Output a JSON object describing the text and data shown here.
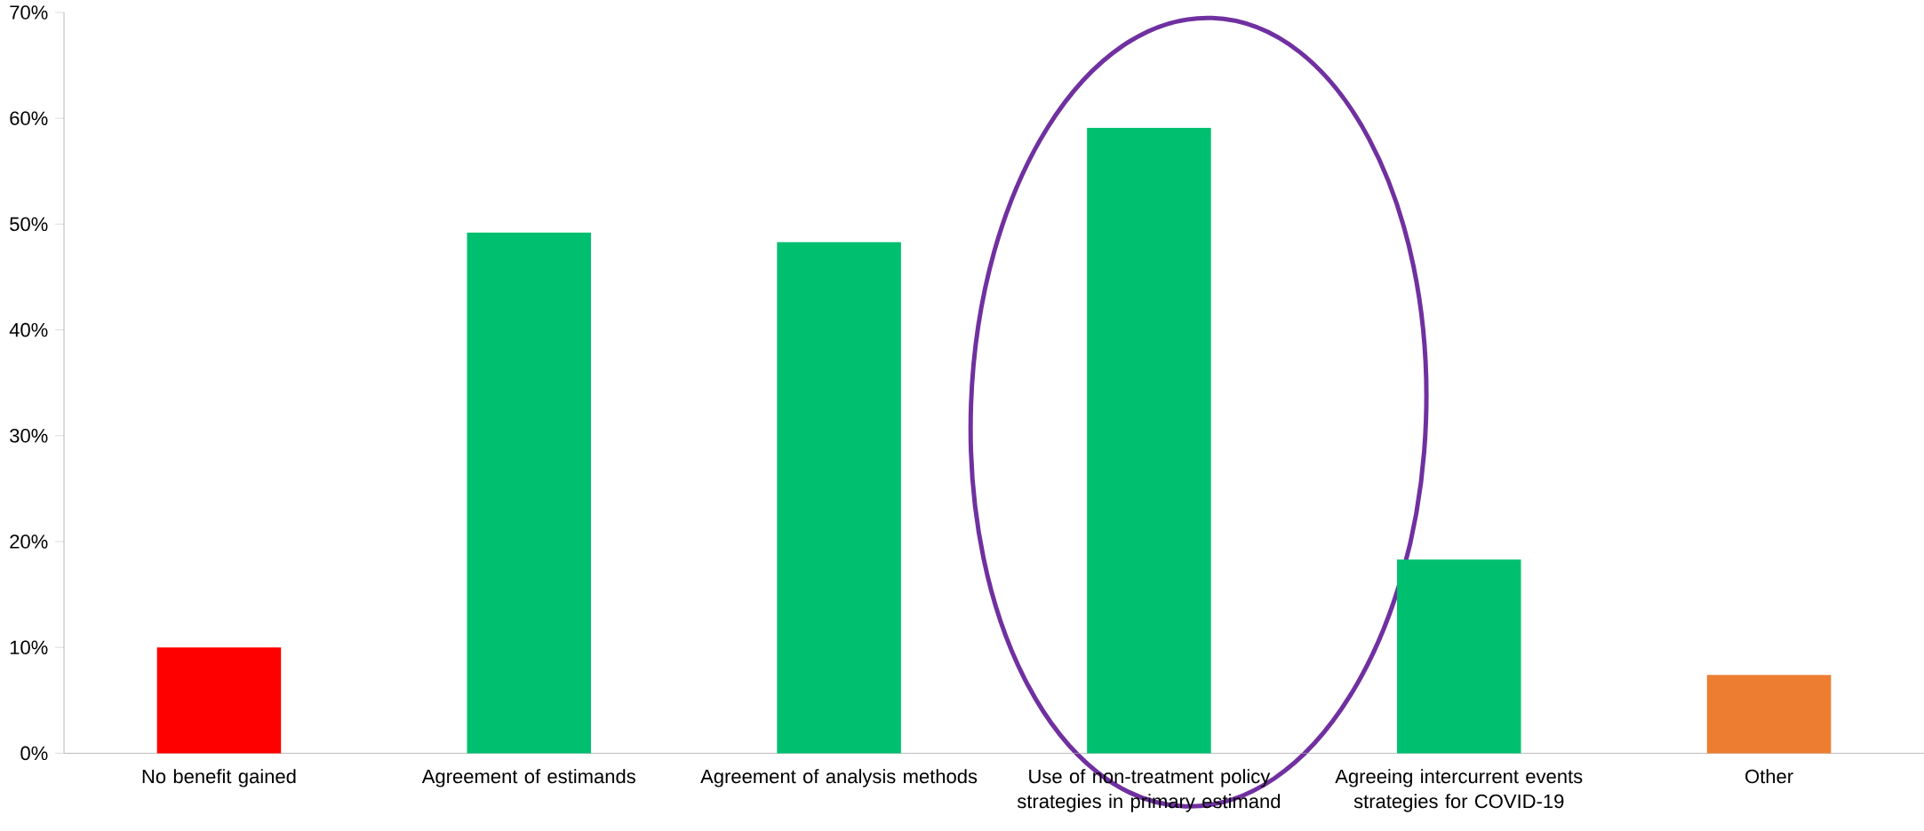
{
  "chart_data": {
    "type": "bar",
    "categories": [
      "No benefit gained",
      "Agreement of estimands",
      "Agreement of analysis methods",
      "Use of non-treatment policy strategies in primary estimand",
      "Agreeing intercurrent events strategies for COVID-19",
      "Other"
    ],
    "values": [
      10,
      49.2,
      48.3,
      59.1,
      18.3,
      7.4
    ],
    "colors": [
      "#ff0000",
      "#00c070",
      "#00c070",
      "#00c070",
      "#00c070",
      "#ed7d31"
    ],
    "ylim": [
      0,
      70
    ],
    "yticks": [
      {
        "value": 0,
        "label": "0%"
      },
      {
        "value": 10,
        "label": "10%"
      },
      {
        "value": 20,
        "label": "20%"
      },
      {
        "value": 30,
        "label": "30%"
      },
      {
        "value": 40,
        "label": "40%"
      },
      {
        "value": 50,
        "label": "50%"
      },
      {
        "value": 60,
        "label": "60%"
      },
      {
        "value": 70,
        "label": "70%"
      }
    ],
    "grid": false
  }
}
